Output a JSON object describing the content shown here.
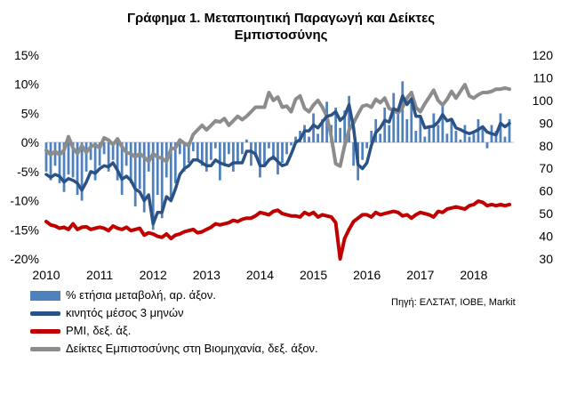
{
  "chart_data": {
    "type": "bar+line",
    "title_line1": "Γράφημα 1. Μεταποιητική Παραγωγή και Δείκτες",
    "title_line2": "Εμπιστοσύνης",
    "source": "Πηγή: ΕΛΣΤΑΤ, ΙΟΒΕ, Markit",
    "left_axis": {
      "ylim": [
        -20,
        15
      ],
      "ticks": [
        "15%",
        "10%",
        "5%",
        "0%",
        "-5%",
        "-10%",
        "-15%",
        "-20%"
      ],
      "tick_values": [
        15,
        10,
        5,
        0,
        -5,
        -10,
        -15,
        -20
      ]
    },
    "right_axis": {
      "ylim": [
        30,
        120
      ],
      "ticks": [
        "120",
        "110",
        "100",
        "90",
        "80",
        "70",
        "60",
        "50",
        "40",
        "30"
      ],
      "tick_values": [
        120,
        110,
        100,
        90,
        80,
        70,
        60,
        50,
        40,
        30
      ]
    },
    "x_axis": {
      "ticks": [
        "2010",
        "2011",
        "2012",
        "2013",
        "2014",
        "2015",
        "2016",
        "2017",
        "2018"
      ],
      "range": [
        2010,
        2018.75
      ]
    },
    "colors": {
      "bars": "#4f81bd",
      "ma": "#2a5286",
      "pmi": "#c00000",
      "confidence": "#8c8c8c"
    },
    "series": [
      {
        "name": "% ετήσια μεταβολή, αρ. άξον.",
        "type": "bar",
        "axis": "left",
        "start": "2010-01",
        "values": [
          -5.0,
          -6.5,
          -4.0,
          -7.0,
          -8.5,
          -5.5,
          -6.0,
          -9.0,
          -10.0,
          -5.0,
          -3.0,
          -6.5,
          -4.0,
          -2.0,
          -5.0,
          -3.0,
          -6.5,
          -9.0,
          -4.0,
          -7.0,
          -11.0,
          -8.0,
          -12.0,
          -5.0,
          -15.0,
          -9.0,
          -13.0,
          -6.0,
          -10.0,
          -7.0,
          -2.0,
          -5.0,
          -3.5,
          -1.5,
          -3.0,
          -4.0,
          -5.0,
          -3.0,
          -1.0,
          -6.5,
          -4.0,
          -2.0,
          -5.0,
          -3.5,
          -2.0,
          0.5,
          -4.0,
          -2.5,
          -6.0,
          -4.0,
          -1.0,
          -3.0,
          -5.5,
          -3.5,
          -2.0,
          -0.5,
          1.0,
          2.0,
          3.0,
          1.0,
          5.0,
          1.5,
          4.0,
          7.0,
          3.0,
          6.0,
          2.5,
          5.5,
          8.0,
          -4.0,
          -6.5,
          -3.0,
          -1.0,
          2.0,
          4.0,
          1.5,
          6.0,
          3.0,
          8.5,
          5.0,
          10.5,
          4.0,
          7.0,
          2.0,
          4.5,
          1.0,
          2.5,
          5.0,
          3.0,
          6.5,
          1.5,
          4.0,
          2.0,
          0.5,
          3.0,
          1.0,
          1.5,
          4.0,
          2.5,
          -1.0,
          3.0,
          2.0,
          5.0,
          1.0,
          4.0
        ]
      },
      {
        "name": "κινητός μέσος 3 μηνών",
        "type": "line",
        "axis": "left",
        "start": "2010-01",
        "values": [
          -5.5,
          -6.0,
          -5.5,
          -5.8,
          -6.8,
          -6.2,
          -6.5,
          -7.0,
          -8.2,
          -6.8,
          -5.0,
          -5.3,
          -4.5,
          -4.0,
          -4.2,
          -3.5,
          -4.8,
          -6.3,
          -5.8,
          -6.5,
          -8.0,
          -8.5,
          -10.0,
          -9.0,
          -14.0,
          -12.0,
          -12.0,
          -9.3,
          -10.0,
          -8.0,
          -5.5,
          -4.5,
          -4.0,
          -3.0,
          -3.0,
          -3.5,
          -4.0,
          -4.0,
          -3.0,
          -3.5,
          -3.8,
          -4.0,
          -3.5,
          -3.5,
          -3.5,
          -1.5,
          -1.5,
          -2.0,
          -4.0,
          -4.0,
          -3.0,
          -2.5,
          -3.3,
          -4.0,
          -3.7,
          -2.0,
          0.0,
          0.5,
          2.0,
          2.0,
          3.0,
          2.5,
          3.5,
          4.5,
          4.7,
          5.3,
          3.8,
          4.5,
          6.5,
          2.5,
          -3.8,
          -4.5,
          -3.5,
          -0.5,
          1.7,
          2.5,
          3.8,
          3.5,
          5.8,
          5.5,
          8.0,
          6.5,
          7.5,
          4.5,
          4.5,
          2.5,
          2.7,
          2.8,
          3.5,
          4.8,
          3.7,
          4.0,
          2.5,
          2.2,
          1.8,
          1.5,
          1.8,
          2.2,
          2.7,
          1.8,
          1.5,
          1.3,
          3.3,
          2.7,
          3.3
        ]
      },
      {
        "name": "PMI, δεξ. άξ.",
        "type": "line",
        "axis": "right",
        "start": "2010-01",
        "values": [
          46.5,
          45.0,
          44.5,
          43.5,
          44.0,
          43.0,
          45.5,
          43.0,
          44.0,
          44.2,
          43.0,
          43.5,
          44.0,
          43.5,
          42.5,
          44.5,
          43.5,
          43.0,
          44.0,
          42.5,
          43.0,
          43.5,
          40.5,
          41.5,
          41.0,
          40.0,
          39.5,
          41.0,
          39.0,
          40.5,
          41.0,
          42.0,
          42.5,
          43.0,
          41.5,
          42.0,
          43.0,
          44.0,
          45.5,
          45.0,
          45.5,
          46.0,
          47.0,
          46.5,
          47.5,
          48.0,
          48.0,
          49.0,
          50.5,
          50.0,
          49.5,
          51.0,
          51.5,
          50.0,
          49.5,
          49.0,
          49.0,
          48.5,
          50.5,
          49.5,
          50.5,
          48.5,
          49.5,
          49.0,
          48.5,
          46.0,
          30.0,
          39.0,
          43.0,
          46.5,
          48.0,
          49.5,
          49.5,
          48.5,
          50.5,
          49.5,
          50.0,
          50.5,
          51.0,
          50.5,
          49.0,
          49.5,
          48.0,
          49.5,
          50.5,
          50.0,
          49.5,
          48.5,
          51.0,
          50.5,
          52.0,
          52.5,
          53.0,
          52.5,
          52.0,
          53.5,
          54.0,
          55.5,
          55.0,
          53.5,
          54.0,
          53.5,
          54.0,
          53.5,
          54.0
        ]
      },
      {
        "name": "Δείκτες Εμπιστοσύνης στη Βιομηχανία, δεξ. άξον.",
        "type": "line",
        "axis": "right",
        "start": "2010-01",
        "values": [
          78.0,
          76.0,
          77.5,
          76.0,
          78.0,
          84.0,
          79.0,
          76.5,
          80.0,
          77.0,
          79.5,
          80.5,
          79.0,
          83.5,
          82.5,
          80.5,
          83.0,
          79.5,
          77.0,
          76.5,
          75.0,
          76.5,
          75.0,
          73.0,
          76.5,
          75.0,
          74.5,
          73.0,
          78.5,
          79.0,
          82.5,
          81.0,
          80.0,
          85.0,
          87.0,
          89.0,
          87.0,
          89.0,
          91.0,
          90.5,
          92.0,
          89.0,
          91.0,
          93.0,
          91.5,
          93.0,
          95.0,
          97.0,
          97.0,
          97.0,
          103.5,
          100.0,
          101.5,
          97.0,
          97.5,
          95.0,
          100.5,
          102.0,
          96.5,
          95.0,
          98.0,
          100.0,
          97.0,
          93.0,
          84.0,
          72.0,
          71.0,
          80.0,
          87.0,
          90.0,
          94.0,
          97.5,
          98.0,
          97.0,
          100.5,
          99.0,
          101.0,
          96.5,
          95.5,
          94.5,
          97.0,
          101.0,
          103.5,
          97.0,
          95.0,
          98.5,
          101.5,
          104.5,
          100.0,
          98.0,
          100.5,
          104.0,
          101.0,
          104.0,
          107.0,
          102.0,
          101.0,
          102.5,
          103.5,
          103.5,
          104.0,
          105.0,
          105.0,
          105.5,
          105.0
        ]
      }
    ]
  }
}
